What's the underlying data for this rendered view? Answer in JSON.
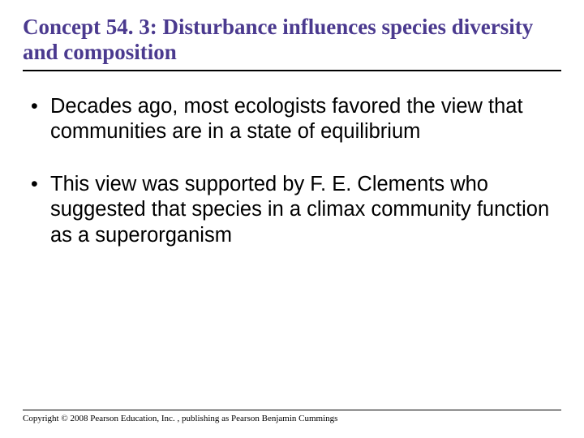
{
  "title_color": "#4b3a8f",
  "title_fontsize": 27,
  "title_font": "Times New Roman",
  "body_fontsize": 25.5,
  "body_font": "Arial",
  "background_color": "#ffffff",
  "rule_color": "#000000",
  "title": "Concept 54. 3: Disturbance influences species diversity and composition",
  "bullets": [
    "Decades ago, most ecologists favored the view that communities are in a state of equilibrium",
    "This view was supported by F. E. Clements who suggested that species in a climax community function as a superorganism"
  ],
  "copyright": "Copyright © 2008 Pearson Education, Inc. , publishing as Pearson Benjamin Cummings",
  "copyright_fontsize": 11
}
